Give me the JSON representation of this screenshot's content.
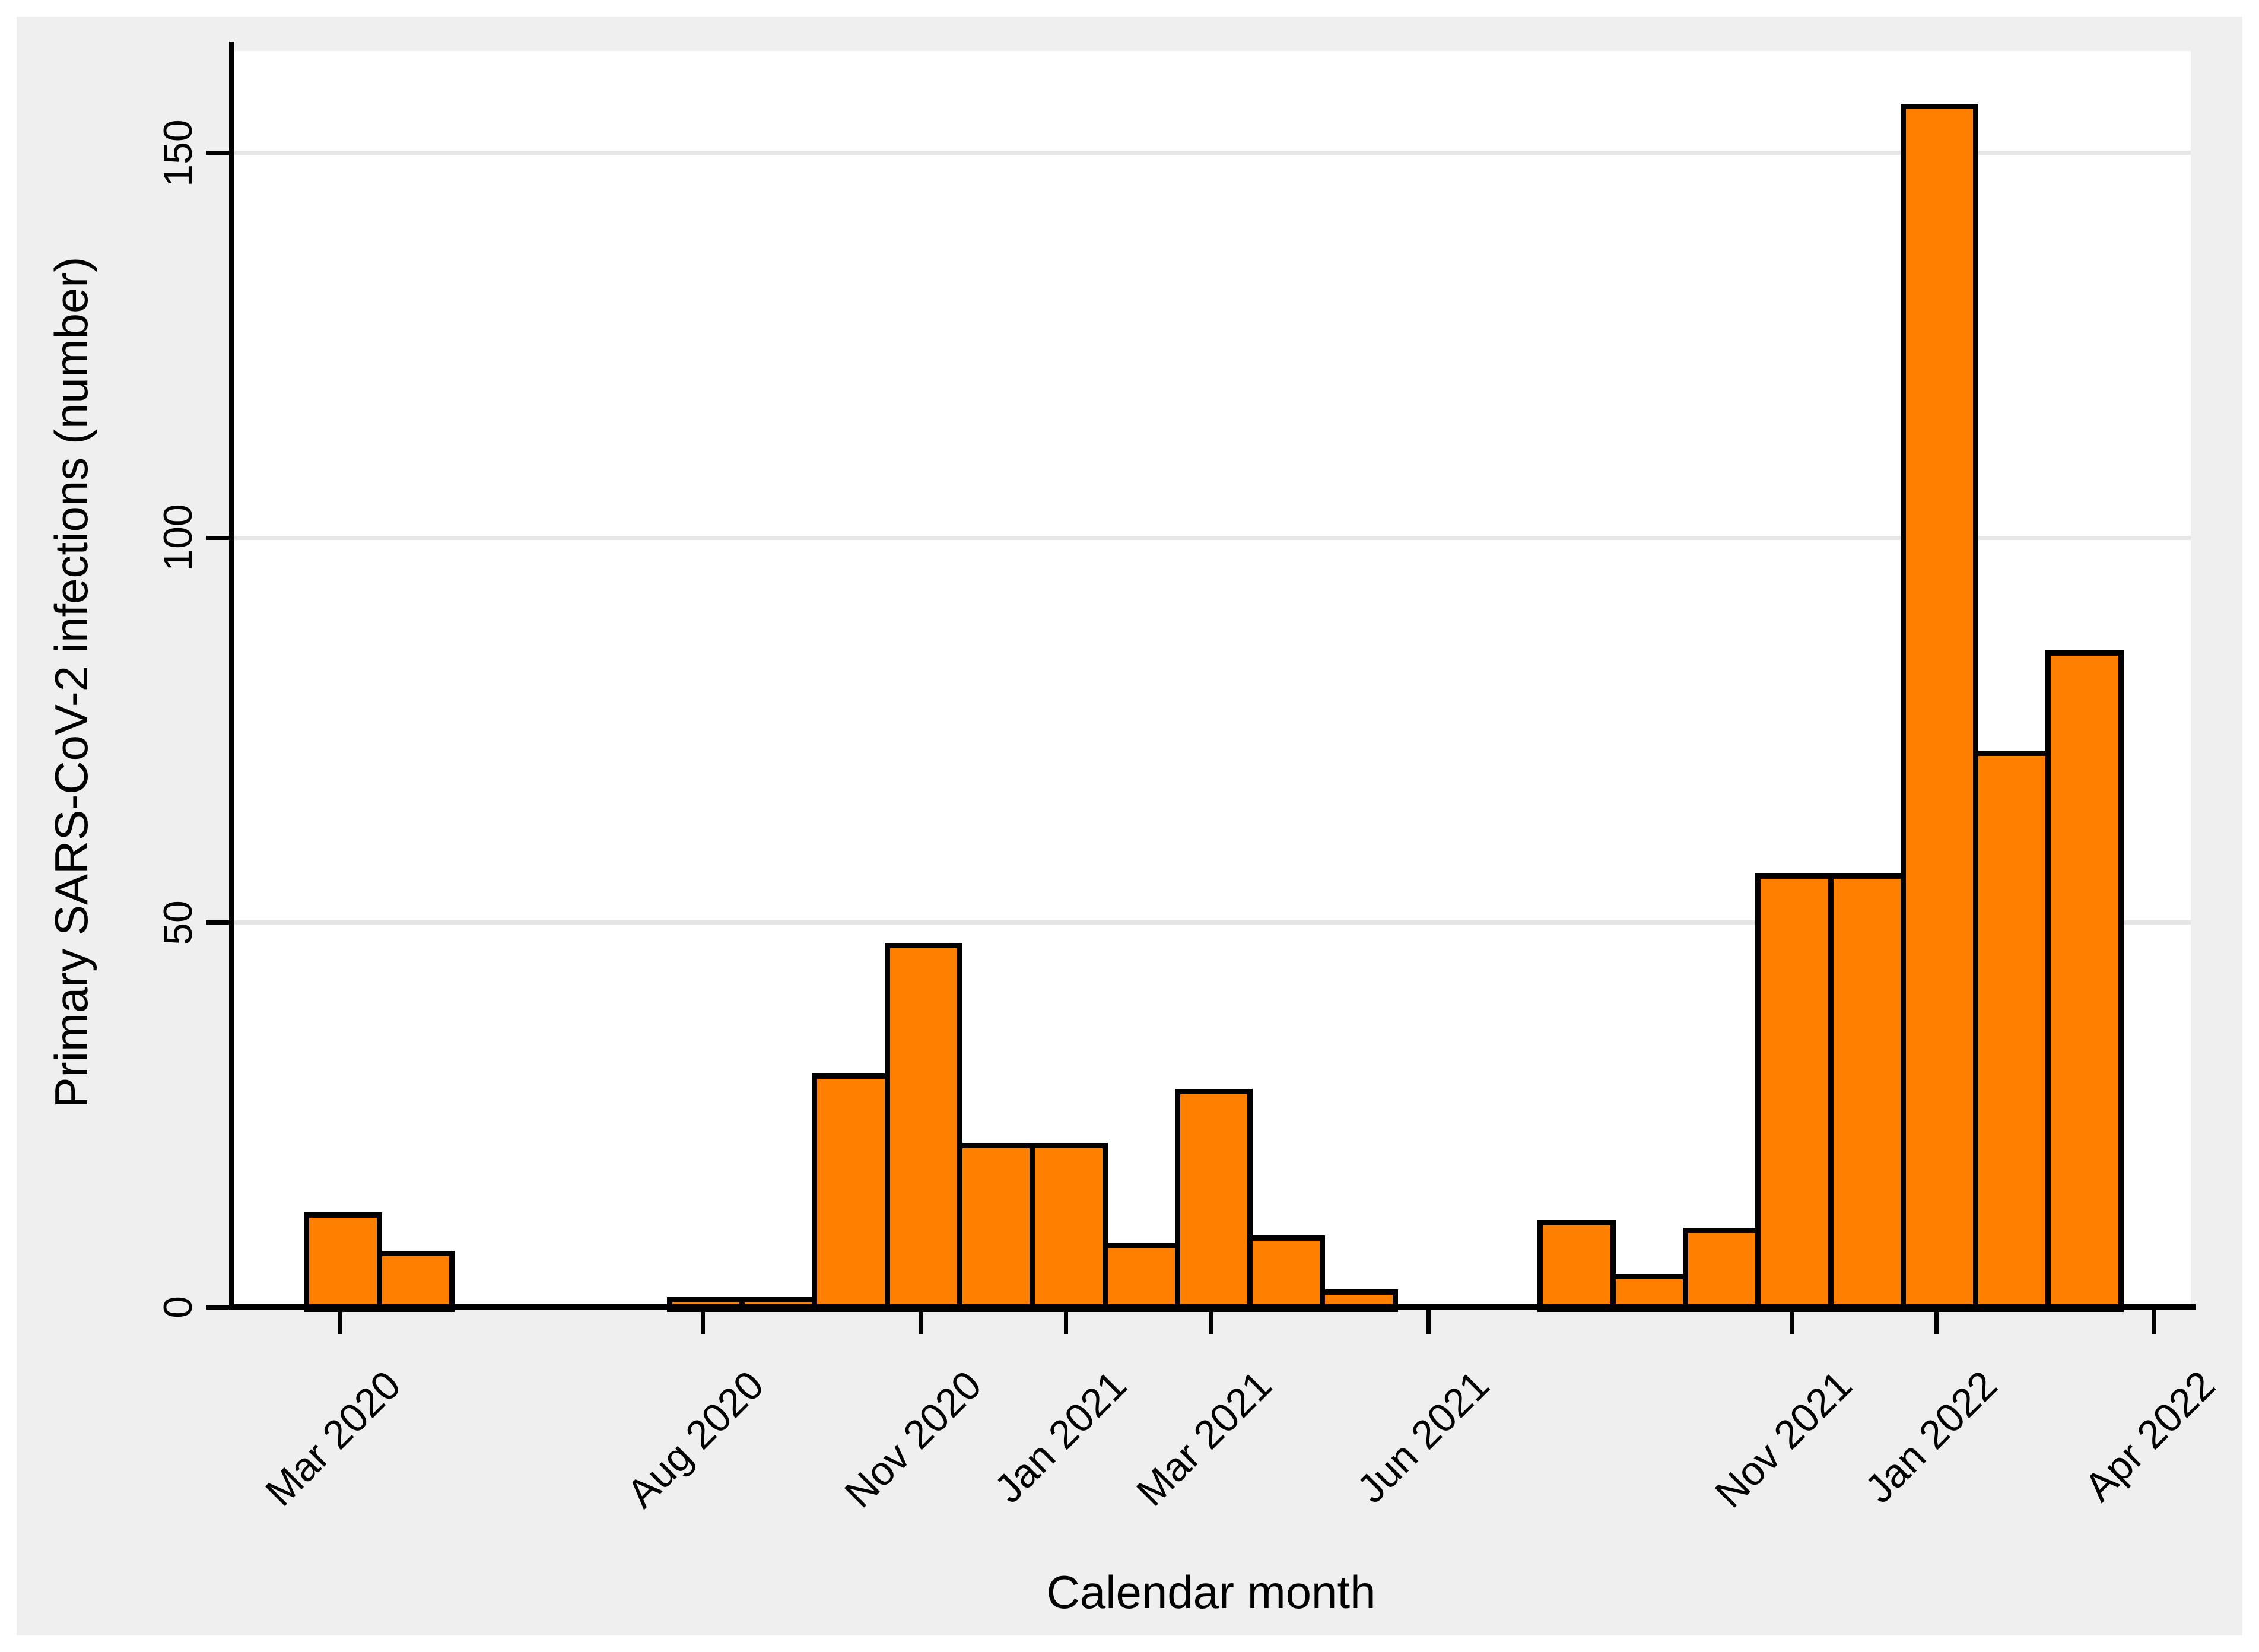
{
  "chart_data": {
    "type": "bar",
    "title": "",
    "xlabel": "Calendar month",
    "ylabel": "Primary SARS-CoV-2 infections (number)",
    "ylim": [
      0,
      163
    ],
    "yticks": [
      0,
      50,
      100,
      150
    ],
    "grid": "horizontal gridlines at 50, 100, 150",
    "legend": "none",
    "bar_color": "#FF8000",
    "bar_border_color": "#000000",
    "background_color": "#EFEFEF",
    "plot_background_color": "#FFFFFF",
    "gridline_color": "#E5E5E5",
    "categories": [
      "Feb 2020",
      "Mar 2020",
      "Apr 2020",
      "May 2020",
      "Jun 2020",
      "Jul 2020",
      "Aug 2020",
      "Sep 2020",
      "Oct 2020",
      "Nov 2020",
      "Dec 2020",
      "Jan 2021",
      "Feb 2021",
      "Mar 2021",
      "Apr 2021",
      "May 2021",
      "Jun 2021",
      "Jul 2021",
      "Aug 2021",
      "Sep 2021",
      "Oct 2021",
      "Nov 2021",
      "Dec 2021",
      "Jan 2022",
      "Feb 2022",
      "Mar 2022",
      "Apr 2022"
    ],
    "values": [
      0,
      12,
      7,
      0,
      0,
      0,
      1,
      1,
      30,
      47,
      21,
      21,
      8,
      28,
      9,
      2,
      0,
      0,
      11,
      4,
      10,
      56,
      56,
      156,
      72,
      85,
      0
    ],
    "xtick_labels": [
      "Mar 2020",
      "Aug 2020",
      "Nov 2020",
      "Jan 2021",
      "Mar 2021",
      "Jun 2021",
      "Nov 2021",
      "Jan 2022",
      "Apr 2022"
    ],
    "xtick_indices": [
      1,
      6,
      9,
      11,
      13,
      16,
      21,
      23,
      26
    ]
  }
}
